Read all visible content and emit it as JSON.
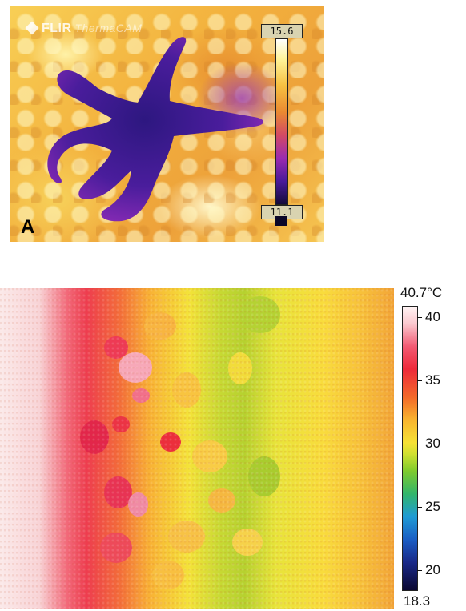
{
  "panel_a": {
    "label": "A",
    "logo_text": "FLIR",
    "logo_subtext": "ThermaCAM",
    "scale_max": "15.6",
    "scale_min": "11.1"
  },
  "panel_b": {
    "scale_max_label": "40.7°C",
    "scale_min_label": "18.3",
    "ticks": [
      "40",
      "35",
      "30",
      "25",
      "20"
    ]
  },
  "colors": {
    "star_cold": "#3a1b8f",
    "star_warm": "#8a2bb6",
    "hot_red": "#ee2a3a",
    "mid_yellow": "#f4e339",
    "cool_green": "#7fcb2e"
  }
}
